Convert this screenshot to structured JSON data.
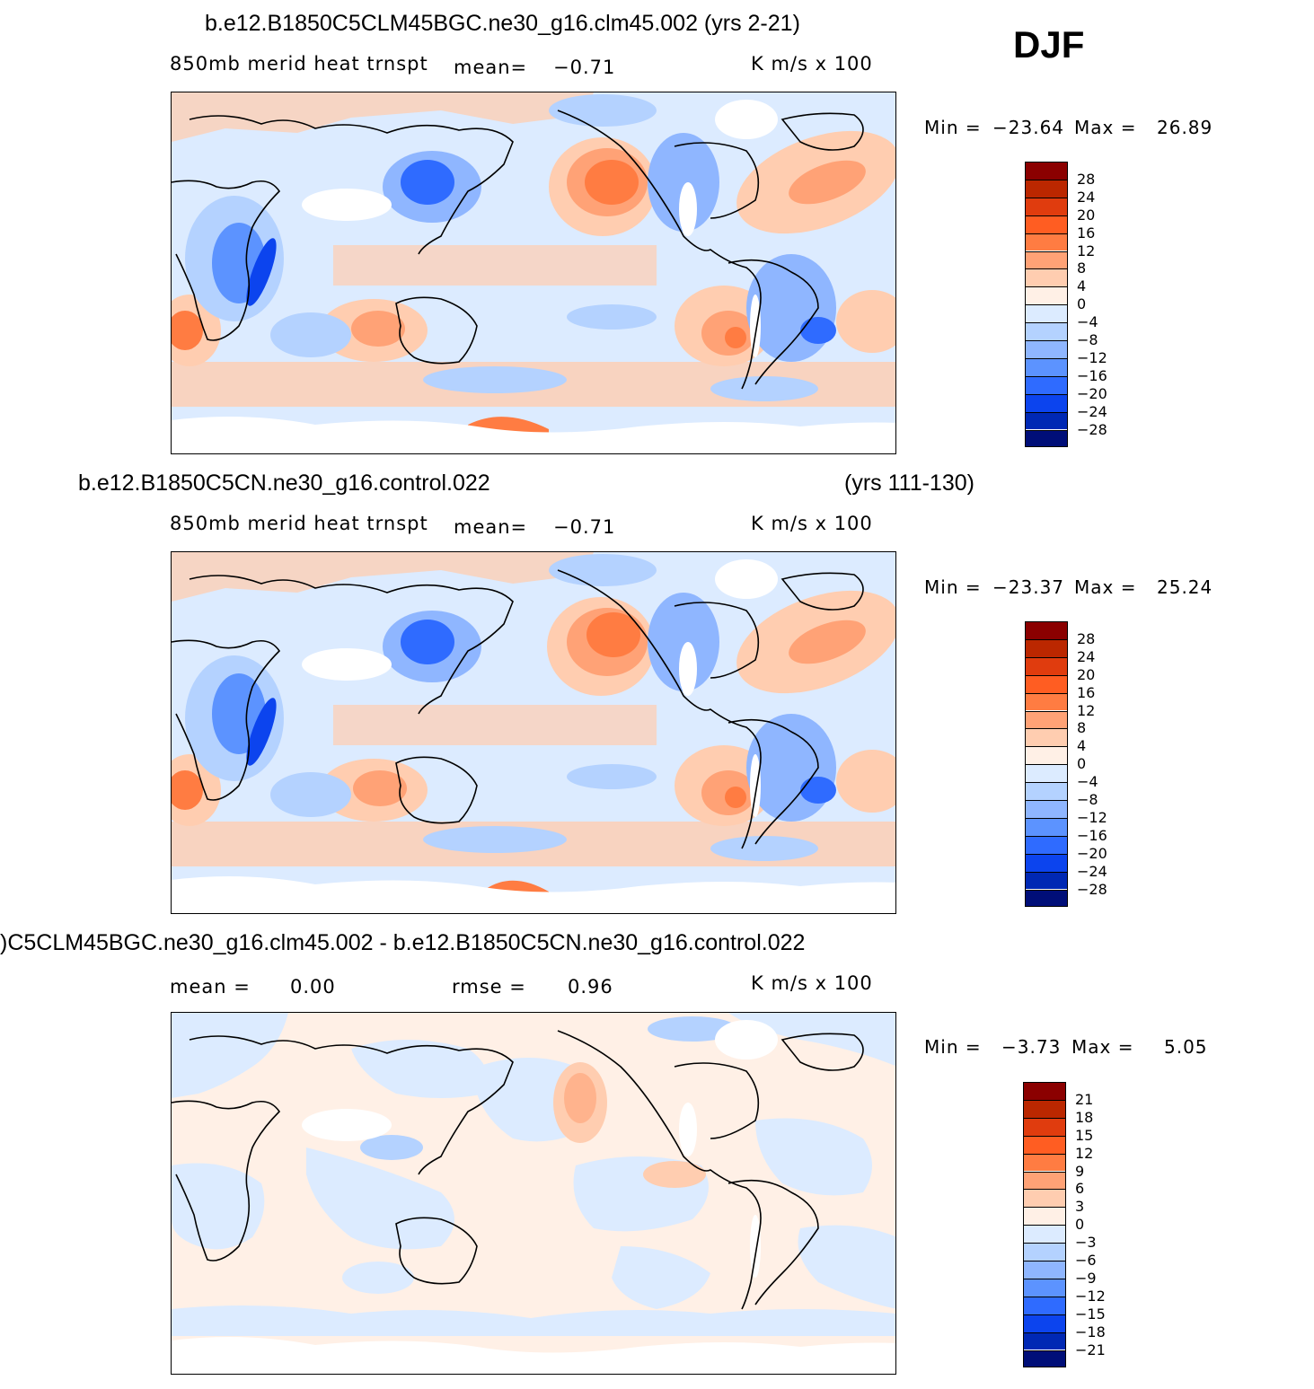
{
  "season": "DJF",
  "units": "K m/s x 100",
  "panels": [
    {
      "title": "b.e12.B1850C5CLM45BGC.ne30_g16.clm45.002 (yrs 2-21)",
      "title_right": "",
      "variable": "850mb merid heat trnspt",
      "mean_label": "mean=",
      "mean_value": "−0.71",
      "min_label": "Min =",
      "min_value": "−23.64",
      "max_label": "Max =",
      "max_value": "26.89",
      "colorbar": {
        "labels": [
          "28",
          "24",
          "20",
          "16",
          "12",
          "8",
          "4",
          "0",
          "−4",
          "−8",
          "−12",
          "−16",
          "−20",
          "−24",
          "−28"
        ],
        "colors": [
          "#8b0000",
          "#bb2700",
          "#e03c0e",
          "#ff5d22",
          "#ff7c42",
          "#ffa276",
          "#ffcdb0",
          "#fff0e6",
          "#dcebff",
          "#b4d2ff",
          "#8fb6ff",
          "#5c93ff",
          "#2f6bff",
          "#0c44ee",
          "#0028b4",
          "#000e78"
        ]
      }
    },
    {
      "title": "b.e12.B1850C5CN.ne30_g16.control.022",
      "title_right": "(yrs 111-130)",
      "variable": "850mb merid heat trnspt",
      "mean_label": "mean=",
      "mean_value": "−0.71",
      "min_label": "Min =",
      "min_value": "−23.37",
      "max_label": "Max =",
      "max_value": "25.24",
      "colorbar": {
        "labels": [
          "28",
          "24",
          "20",
          "16",
          "12",
          "8",
          "4",
          "0",
          "−4",
          "−8",
          "−12",
          "−16",
          "−20",
          "−24",
          "−28"
        ],
        "colors": [
          "#8b0000",
          "#bb2700",
          "#e03c0e",
          "#ff5d22",
          "#ff7c42",
          "#ffa276",
          "#ffcdb0",
          "#fff0e6",
          "#dcebff",
          "#b4d2ff",
          "#8fb6ff",
          "#5c93ff",
          "#2f6bff",
          "#0c44ee",
          "#0028b4",
          "#000e78"
        ]
      }
    },
    {
      "title": ")C5CLM45BGC.ne30_g16.clm45.002 - b.e12.B1850C5CN.ne30_g16.control.022",
      "title_right": "",
      "mean_label": "mean =",
      "mean_value": "0.00",
      "rmse_label": "rmse =",
      "rmse_value": "0.96",
      "min_label": "Min =",
      "min_value": "−3.73",
      "max_label": "Max =",
      "max_value": "5.05",
      "colorbar": {
        "labels": [
          "21",
          "18",
          "15",
          "12",
          "9",
          "6",
          "3",
          "0",
          "−3",
          "−6",
          "−9",
          "−12",
          "−15",
          "−18",
          "−21"
        ],
        "colors": [
          "#8b0000",
          "#bb2700",
          "#e03c0e",
          "#ff5d22",
          "#ff7c42",
          "#ffa276",
          "#ffcdb0",
          "#fff0e6",
          "#dcebff",
          "#b4d2ff",
          "#8fb6ff",
          "#5c93ff",
          "#2f6bff",
          "#0c44ee",
          "#0028b4",
          "#000e78"
        ]
      }
    }
  ]
}
